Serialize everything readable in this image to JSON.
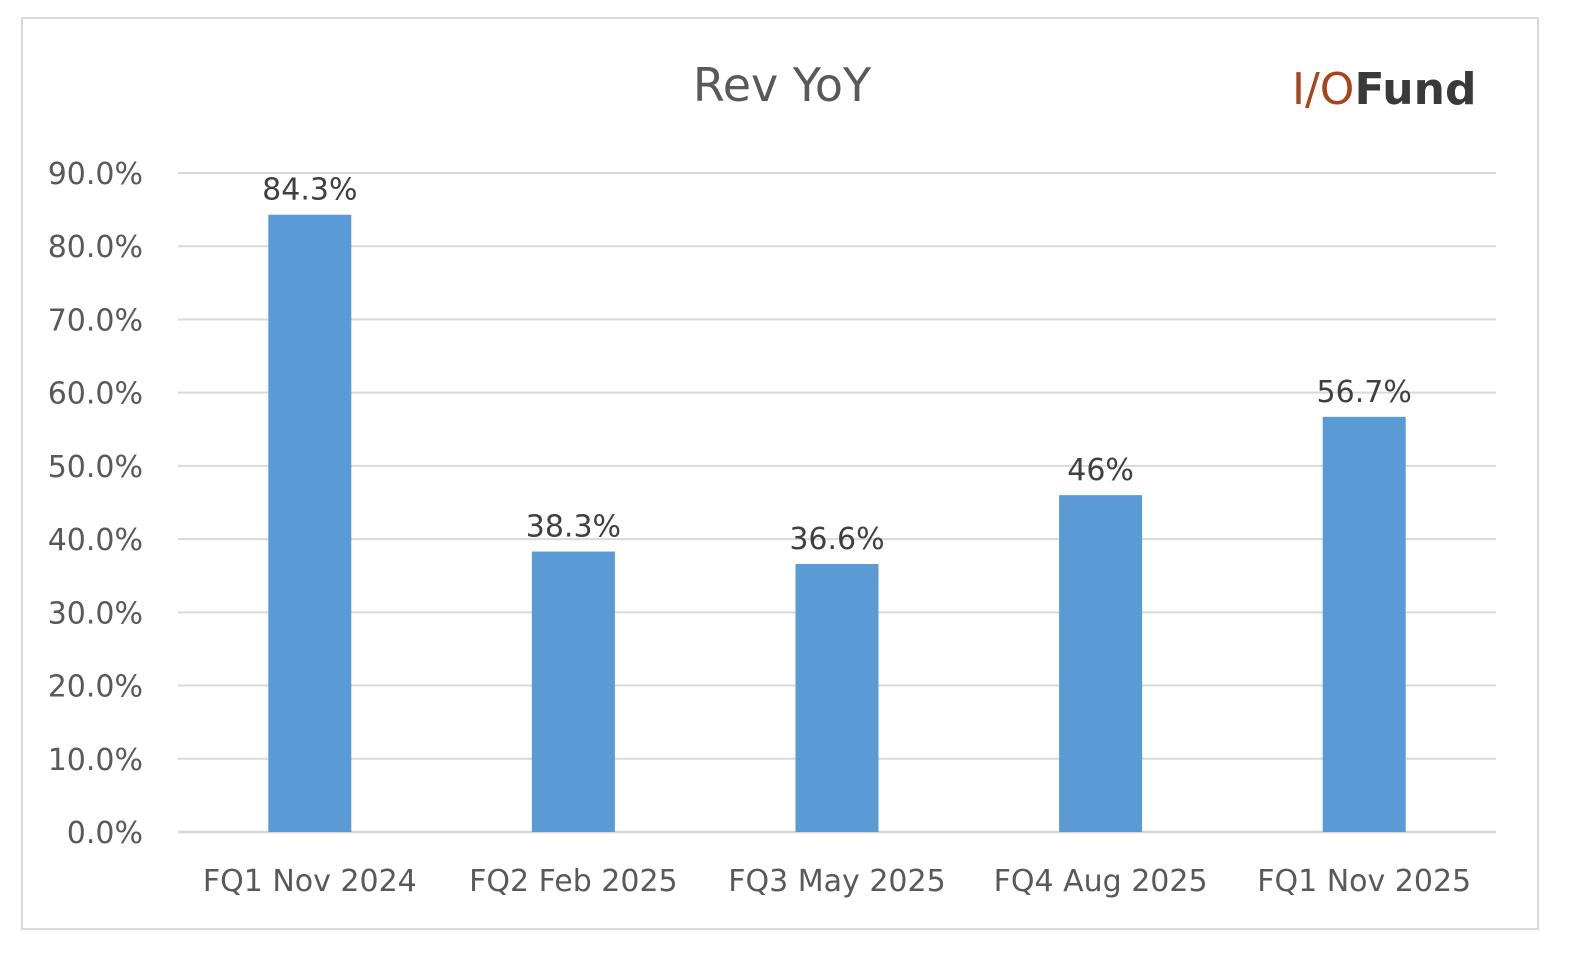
{
  "colors": {
    "bar": "#5b9bd5",
    "grid": "#d9d9d9",
    "text": "#595959",
    "logo_accent": "#a9441d",
    "logo_dark": "#3a3a3a"
  },
  "logo": {
    "part1": "I/O",
    "part2": "Fund"
  },
  "chart_data": {
    "type": "bar",
    "title": "Rev YoY",
    "xlabel": "",
    "ylabel": "",
    "categories": [
      "FQ1 Nov 2024",
      "FQ2 Feb 2025",
      "FQ3 May 2025",
      "FQ4 Aug 2025",
      "FQ1 Nov 2025"
    ],
    "values": [
      84.3,
      38.3,
      36.6,
      46,
      56.7
    ],
    "data_labels": [
      "84.3%",
      "38.3%",
      "36.6%",
      "46%",
      "56.7%"
    ],
    "ylim": [
      0,
      90
    ],
    "yticks": [
      "0.0%",
      "10.0%",
      "20.0%",
      "30.0%",
      "40.0%",
      "50.0%",
      "60.0%",
      "70.0%",
      "80.0%",
      "90.0%"
    ],
    "grid": true,
    "legend": "none"
  }
}
